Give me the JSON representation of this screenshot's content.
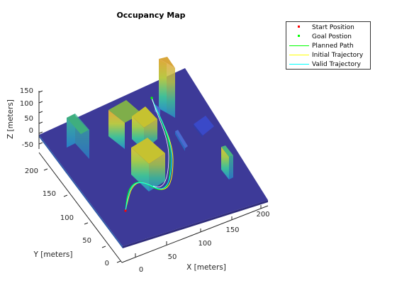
{
  "chart_data": {
    "type": "3d-occupancy-map",
    "title": "Occupancy Map",
    "xlabel": "X [meters]",
    "ylabel": "Y [meters]",
    "zlabel": "Z [meters]",
    "xticks": [
      "0",
      "50",
      "100",
      "150",
      "200"
    ],
    "yticks": [
      "0",
      "50",
      "100",
      "150",
      "200"
    ],
    "zticks": [
      "150",
      "100",
      "50",
      "0",
      "-50"
    ],
    "legend": [
      {
        "label": "Start Position",
        "marker": "dot",
        "color": "#ff0000"
      },
      {
        "label": "Goal Postion",
        "marker": "dot",
        "color": "#00ff00"
      },
      {
        "label": "Planned Path",
        "marker": "line",
        "color": "#00ff00"
      },
      {
        "label": "Initial Trajectory",
        "marker": "line",
        "color": "#ffff00"
      },
      {
        "label": "Valid Trajectory",
        "marker": "line",
        "color": "#00ffff"
      }
    ],
    "colors": {
      "ground": "#3d3a98",
      "low": "#2c9bbd",
      "mid": "#4fbf8a",
      "high": "#d4c832",
      "top": "#c9b030"
    }
  }
}
